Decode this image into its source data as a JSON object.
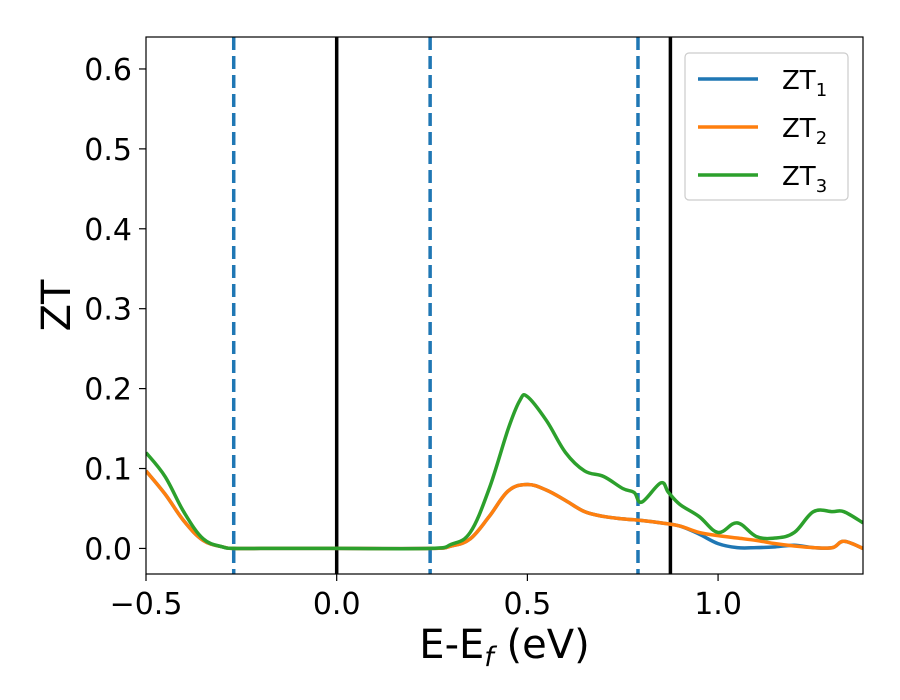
{
  "chart_data": {
    "type": "line",
    "xlabel": "E-E",
    "xlabel_sub": "f",
    "xlabel_unit": " (eV)",
    "ylabel": "ZT",
    "xlim": [
      -0.5,
      1.38
    ],
    "ylim": [
      -0.032,
      0.64
    ],
    "x_ticks": [
      -0.5,
      0.0,
      0.5,
      1.0
    ],
    "x_tick_labels": [
      "−0.5",
      "0.0",
      "0.5",
      "1.0"
    ],
    "y_ticks": [
      0.0,
      0.1,
      0.2,
      0.3,
      0.4,
      0.5,
      0.6
    ],
    "y_tick_labels": [
      "0.0",
      "0.1",
      "0.2",
      "0.3",
      "0.4",
      "0.5",
      "0.6"
    ],
    "grid": false,
    "legend_position": "top-right",
    "vlines": [
      {
        "x": -0.27,
        "style": "dashed",
        "color": "#1f77b4"
      },
      {
        "x": 0.0,
        "style": "solid",
        "color": "#000000"
      },
      {
        "x": 0.245,
        "style": "dashed",
        "color": "#1f77b4"
      },
      {
        "x": 0.79,
        "style": "dashed",
        "color": "#1f77b4"
      },
      {
        "x": 0.875,
        "style": "solid",
        "color": "#000000"
      }
    ],
    "series": [
      {
        "name": "ZT",
        "name_sub": "1",
        "color": "#1f77b4",
        "x": [
          -0.5,
          -0.45,
          -0.4,
          -0.35,
          -0.3,
          -0.27,
          -0.2,
          0.0,
          0.245,
          0.3,
          0.35,
          0.4,
          0.45,
          0.5,
          0.55,
          0.6,
          0.65,
          0.7,
          0.75,
          0.8,
          0.85,
          0.9,
          0.95,
          1.0,
          1.05,
          1.1,
          1.15,
          1.2,
          1.25,
          1.3,
          1.33,
          1.38
        ],
        "y": [
          0.097,
          0.068,
          0.034,
          0.01,
          0.002,
          0.0,
          0.0,
          0.0,
          0.0,
          0.003,
          0.012,
          0.04,
          0.072,
          0.08,
          0.073,
          0.06,
          0.046,
          0.04,
          0.037,
          0.035,
          0.032,
          0.028,
          0.018,
          0.006,
          0.001,
          0.001,
          0.002,
          0.004,
          0.001,
          0.001,
          0.009,
          0.0
        ]
      },
      {
        "name": "ZT",
        "name_sub": "2",
        "color": "#ff7f0e",
        "x": [
          -0.5,
          -0.45,
          -0.4,
          -0.35,
          -0.3,
          -0.27,
          -0.2,
          0.0,
          0.245,
          0.3,
          0.35,
          0.4,
          0.45,
          0.5,
          0.55,
          0.6,
          0.65,
          0.7,
          0.75,
          0.8,
          0.85,
          0.9,
          0.95,
          1.0,
          1.05,
          1.1,
          1.15,
          1.2,
          1.25,
          1.3,
          1.33,
          1.38
        ],
        "y": [
          0.097,
          0.068,
          0.034,
          0.01,
          0.002,
          0.0,
          0.0,
          0.0,
          0.0,
          0.003,
          0.012,
          0.04,
          0.072,
          0.08,
          0.073,
          0.06,
          0.046,
          0.04,
          0.037,
          0.035,
          0.032,
          0.028,
          0.02,
          0.016,
          0.013,
          0.01,
          0.006,
          0.003,
          0.001,
          0.001,
          0.009,
          0.0
        ]
      },
      {
        "name": "ZT",
        "name_sub": "3",
        "color": "#2ca02c",
        "x": [
          -0.5,
          -0.45,
          -0.4,
          -0.35,
          -0.3,
          -0.27,
          -0.2,
          0.0,
          0.245,
          0.3,
          0.35,
          0.4,
          0.45,
          0.48,
          0.5,
          0.55,
          0.6,
          0.65,
          0.7,
          0.75,
          0.78,
          0.8,
          0.85,
          0.87,
          0.9,
          0.95,
          1.0,
          1.05,
          1.1,
          1.15,
          1.2,
          1.25,
          1.3,
          1.33,
          1.38
        ],
        "y": [
          0.12,
          0.09,
          0.045,
          0.012,
          0.002,
          0.0,
          0.0,
          0.0,
          0.0,
          0.005,
          0.02,
          0.075,
          0.15,
          0.185,
          0.19,
          0.16,
          0.12,
          0.097,
          0.09,
          0.075,
          0.07,
          0.058,
          0.082,
          0.07,
          0.055,
          0.04,
          0.02,
          0.032,
          0.015,
          0.013,
          0.02,
          0.046,
          0.046,
          0.046,
          0.032
        ]
      }
    ]
  }
}
